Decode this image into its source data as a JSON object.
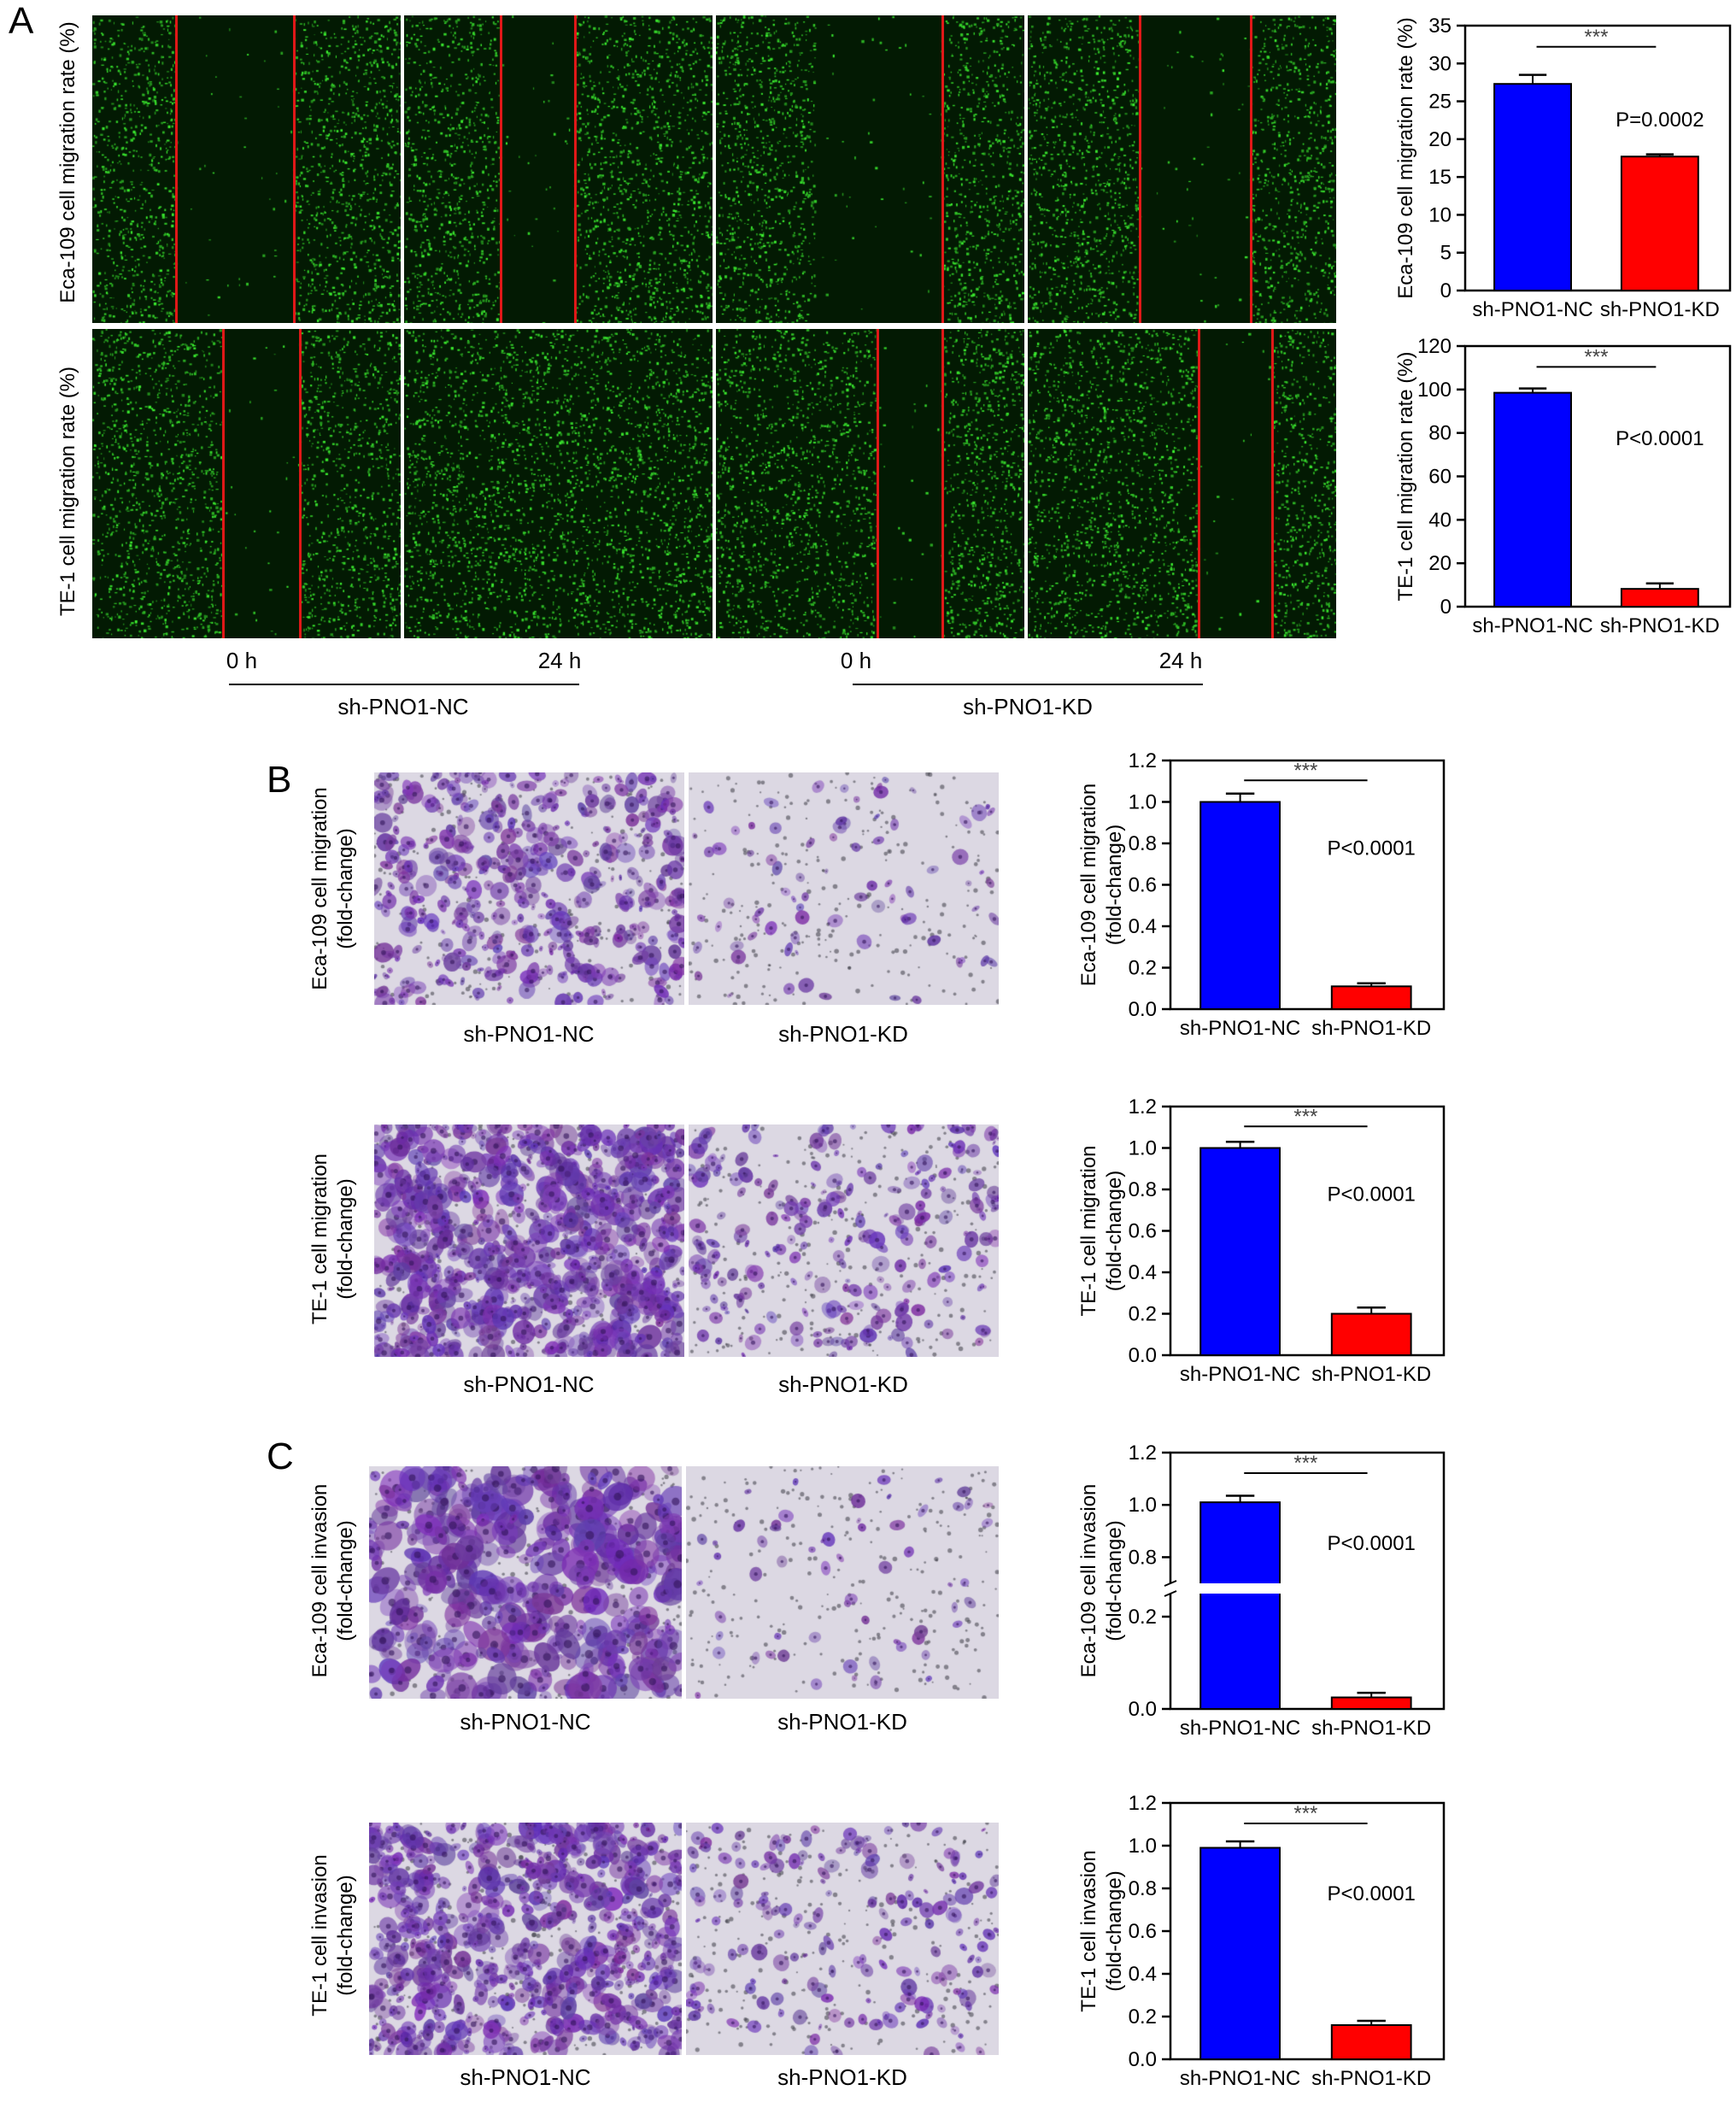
{
  "panels": {
    "a": "A",
    "b": "B",
    "c": "C"
  },
  "panel_a": {
    "row_labels": [
      "Eca-109 cell migration rate (%)",
      "TE-1 cell migration rate (%)"
    ],
    "time_labels": [
      "0 h",
      "24 h",
      "0 h",
      "24 h"
    ],
    "group_labels": [
      "sh-PNO1-NC",
      "sh-PNO1-KD"
    ]
  },
  "panel_b": {
    "row_labels": [
      [
        "Eca-109 cell migration",
        "(fold-change)"
      ],
      [
        "TE-1 cell migration",
        "(fold-change)"
      ]
    ],
    "image_labels": [
      "sh-PNO1-NC",
      "sh-PNO1-KD"
    ]
  },
  "panel_c": {
    "row_labels": [
      [
        "Eca-109 cell invasion",
        "(fold-change)"
      ],
      [
        "TE-1 cell invasion",
        "(fold-change)"
      ]
    ],
    "image_labels": [
      "sh-PNO1-NC",
      "sh-PNO1-KD"
    ]
  },
  "colors": {
    "nc": "#0000ff",
    "kd": "#ff0000",
    "fluor": "#2fd12f",
    "stain": "#6a3fa8"
  },
  "chart_data": [
    {
      "type": "bar",
      "categories": [
        "sh-PNO1-NC",
        "sh-PNO1-KD"
      ],
      "values": [
        27.3,
        17.7
      ],
      "errors": [
        1.2,
        0.3
      ],
      "ylabel": "Eca-109 cell migration rate (%)",
      "ylim": [
        0,
        35
      ],
      "yticks": [
        0,
        5,
        10,
        15,
        20,
        25,
        30,
        35
      ],
      "significance": "***",
      "pvalue": "P=0.0002"
    },
    {
      "type": "bar",
      "categories": [
        "sh-PNO1-NC",
        "sh-PNO1-KD"
      ],
      "values": [
        98.5,
        8.2
      ],
      "errors": [
        2.0,
        2.5
      ],
      "ylabel": "TE-1 cell migration rate (%)",
      "ylim": [
        0,
        120
      ],
      "yticks": [
        0,
        20,
        40,
        60,
        80,
        100,
        120
      ],
      "significance": "***",
      "pvalue": "P<0.0001"
    },
    {
      "type": "bar",
      "categories": [
        "sh-PNO1-NC",
        "sh-PNO1-KD"
      ],
      "values": [
        1.0,
        0.11
      ],
      "errors": [
        0.04,
        0.015
      ],
      "ylabel": "Eca-109 cell migration (fold-change)",
      "ylim": [
        0,
        1.2
      ],
      "yticks": [
        "0.0",
        "0.2",
        "0.4",
        "0.6",
        "0.8",
        "1.0",
        "1.2"
      ],
      "significance": "***",
      "pvalue": "P<0.0001"
    },
    {
      "type": "bar",
      "categories": [
        "sh-PNO1-NC",
        "sh-PNO1-KD"
      ],
      "values": [
        1.0,
        0.2
      ],
      "errors": [
        0.03,
        0.03
      ],
      "ylabel": "TE-1 cell migration (fold-change)",
      "ylim": [
        0,
        1.2
      ],
      "yticks": [
        "0.0",
        "0.2",
        "0.4",
        "0.6",
        "0.8",
        "1.0",
        "1.2"
      ],
      "significance": "***",
      "pvalue": "P<0.0001"
    },
    {
      "type": "bar",
      "categories": [
        "sh-PNO1-NC",
        "sh-PNO1-KD"
      ],
      "values": [
        1.01,
        0.025
      ],
      "errors": [
        0.025,
        0.01
      ],
      "ylabel": "Eca-109 cell invasion (fold-change)",
      "ylim": [
        0,
        1.2
      ],
      "yticks": [
        "0.0",
        "0.2",
        "0.8",
        "1.0",
        "1.2"
      ],
      "axis_break": [
        0.25,
        0.7
      ],
      "significance": "***",
      "pvalue": "P<0.0001"
    },
    {
      "type": "bar",
      "categories": [
        "sh-PNO1-NC",
        "sh-PNO1-KD"
      ],
      "values": [
        0.99,
        0.16
      ],
      "errors": [
        0.03,
        0.02
      ],
      "ylabel": "TE-1 cell invasion (fold-change)",
      "ylim": [
        0,
        1.2
      ],
      "yticks": [
        "0.0",
        "0.2",
        "0.4",
        "0.6",
        "0.8",
        "1.0",
        "1.2"
      ],
      "significance": "***",
      "pvalue": "P<0.0001"
    }
  ]
}
